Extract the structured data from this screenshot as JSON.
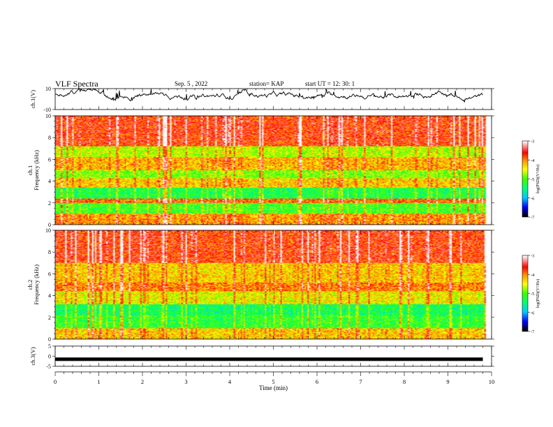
{
  "header": {
    "title": "VLF Spectra",
    "date": "Sep. 5 , 2022",
    "station": "station= KAP",
    "start_ut": "start UT =  12: 30: 1"
  },
  "chart_data": [
    {
      "type": "line",
      "panel": "ch1-waveform",
      "ylabel": "ch.1(V)",
      "ylim": [
        -10,
        10
      ],
      "yticks": [
        "10",
        "-10"
      ],
      "xlim": [
        0,
        10
      ],
      "note_values": "noisy waveform, roughly between -3 and 7 V over 0-9.8 min"
    },
    {
      "type": "heatmap",
      "panel": "ch1-spectrogram",
      "ylabel": "ch.1\nFrequency  (kHz)",
      "ylim": [
        0,
        10
      ],
      "yticks": [
        "0",
        "2",
        "4",
        "6",
        "8",
        "10"
      ],
      "xlim": [
        0,
        10
      ],
      "colorbar": {
        "label": "log(PSD)(V²/Hz)",
        "range": [
          -7,
          -3
        ],
        "ticks": [
          "-3",
          "-4",
          "-5",
          "-6",
          "-7"
        ],
        "colors": [
          "#000000",
          "#0000ff",
          "#00ffff",
          "#00ff00",
          "#ffff00",
          "#ff0000",
          "#ffffff"
        ]
      },
      "dominant_bands_khz": [
        {
          "from": 0,
          "to": 1.0,
          "level": -4.2
        },
        {
          "from": 1.0,
          "to": 2.0,
          "level": -5.2
        },
        {
          "from": 2.0,
          "to": 2.4,
          "level": -4.0
        },
        {
          "from": 2.4,
          "to": 3.4,
          "level": -5.4
        },
        {
          "from": 3.4,
          "to": 4.3,
          "level": -4.4
        },
        {
          "from": 4.3,
          "to": 5.0,
          "level": -5.0
        },
        {
          "from": 5.0,
          "to": 6.2,
          "level": -4.3
        },
        {
          "from": 6.2,
          "to": 7.2,
          "level": -4.8
        },
        {
          "from": 7.2,
          "to": 10.0,
          "level": -3.8
        }
      ]
    },
    {
      "type": "heatmap",
      "panel": "ch2-spectrogram",
      "ylabel": "ch.2\nFrequency  (kHz)",
      "ylim": [
        0,
        10
      ],
      "yticks": [
        "0",
        "2",
        "4",
        "6",
        "8",
        "10"
      ],
      "xlim": [
        0,
        10
      ],
      "colorbar": {
        "label": "log(PSD)(V²/Hz)",
        "range": [
          -7,
          -3
        ],
        "ticks": [
          "-3",
          "-4",
          "-5",
          "-6",
          "-7"
        ],
        "colors": [
          "#000000",
          "#0000ff",
          "#00ffff",
          "#00ff00",
          "#ffff00",
          "#ff0000",
          "#ffffff"
        ]
      },
      "dominant_bands_khz": [
        {
          "from": 0,
          "to": 1.0,
          "level": -4.4
        },
        {
          "from": 1.0,
          "to": 2.2,
          "level": -5.3
        },
        {
          "from": 2.2,
          "to": 3.2,
          "level": -5.5
        },
        {
          "from": 3.2,
          "to": 4.4,
          "level": -4.6
        },
        {
          "from": 4.4,
          "to": 5.2,
          "level": -4.1
        },
        {
          "from": 5.2,
          "to": 7.0,
          "level": -4.4
        },
        {
          "from": 7.0,
          "to": 10.0,
          "level": -3.8
        }
      ]
    },
    {
      "type": "line",
      "panel": "ch3-waveform",
      "ylabel": "ch.3(V)",
      "ylim": [
        -5,
        5
      ],
      "yticks": [
        "5",
        "0",
        "-5"
      ],
      "xlim": [
        0,
        10
      ],
      "xticks": [
        "0",
        "1",
        "2",
        "3",
        "4",
        "5",
        "6",
        "7",
        "8",
        "9",
        "10"
      ],
      "xlabel": "Time  (min)",
      "level": -1.5
    }
  ]
}
